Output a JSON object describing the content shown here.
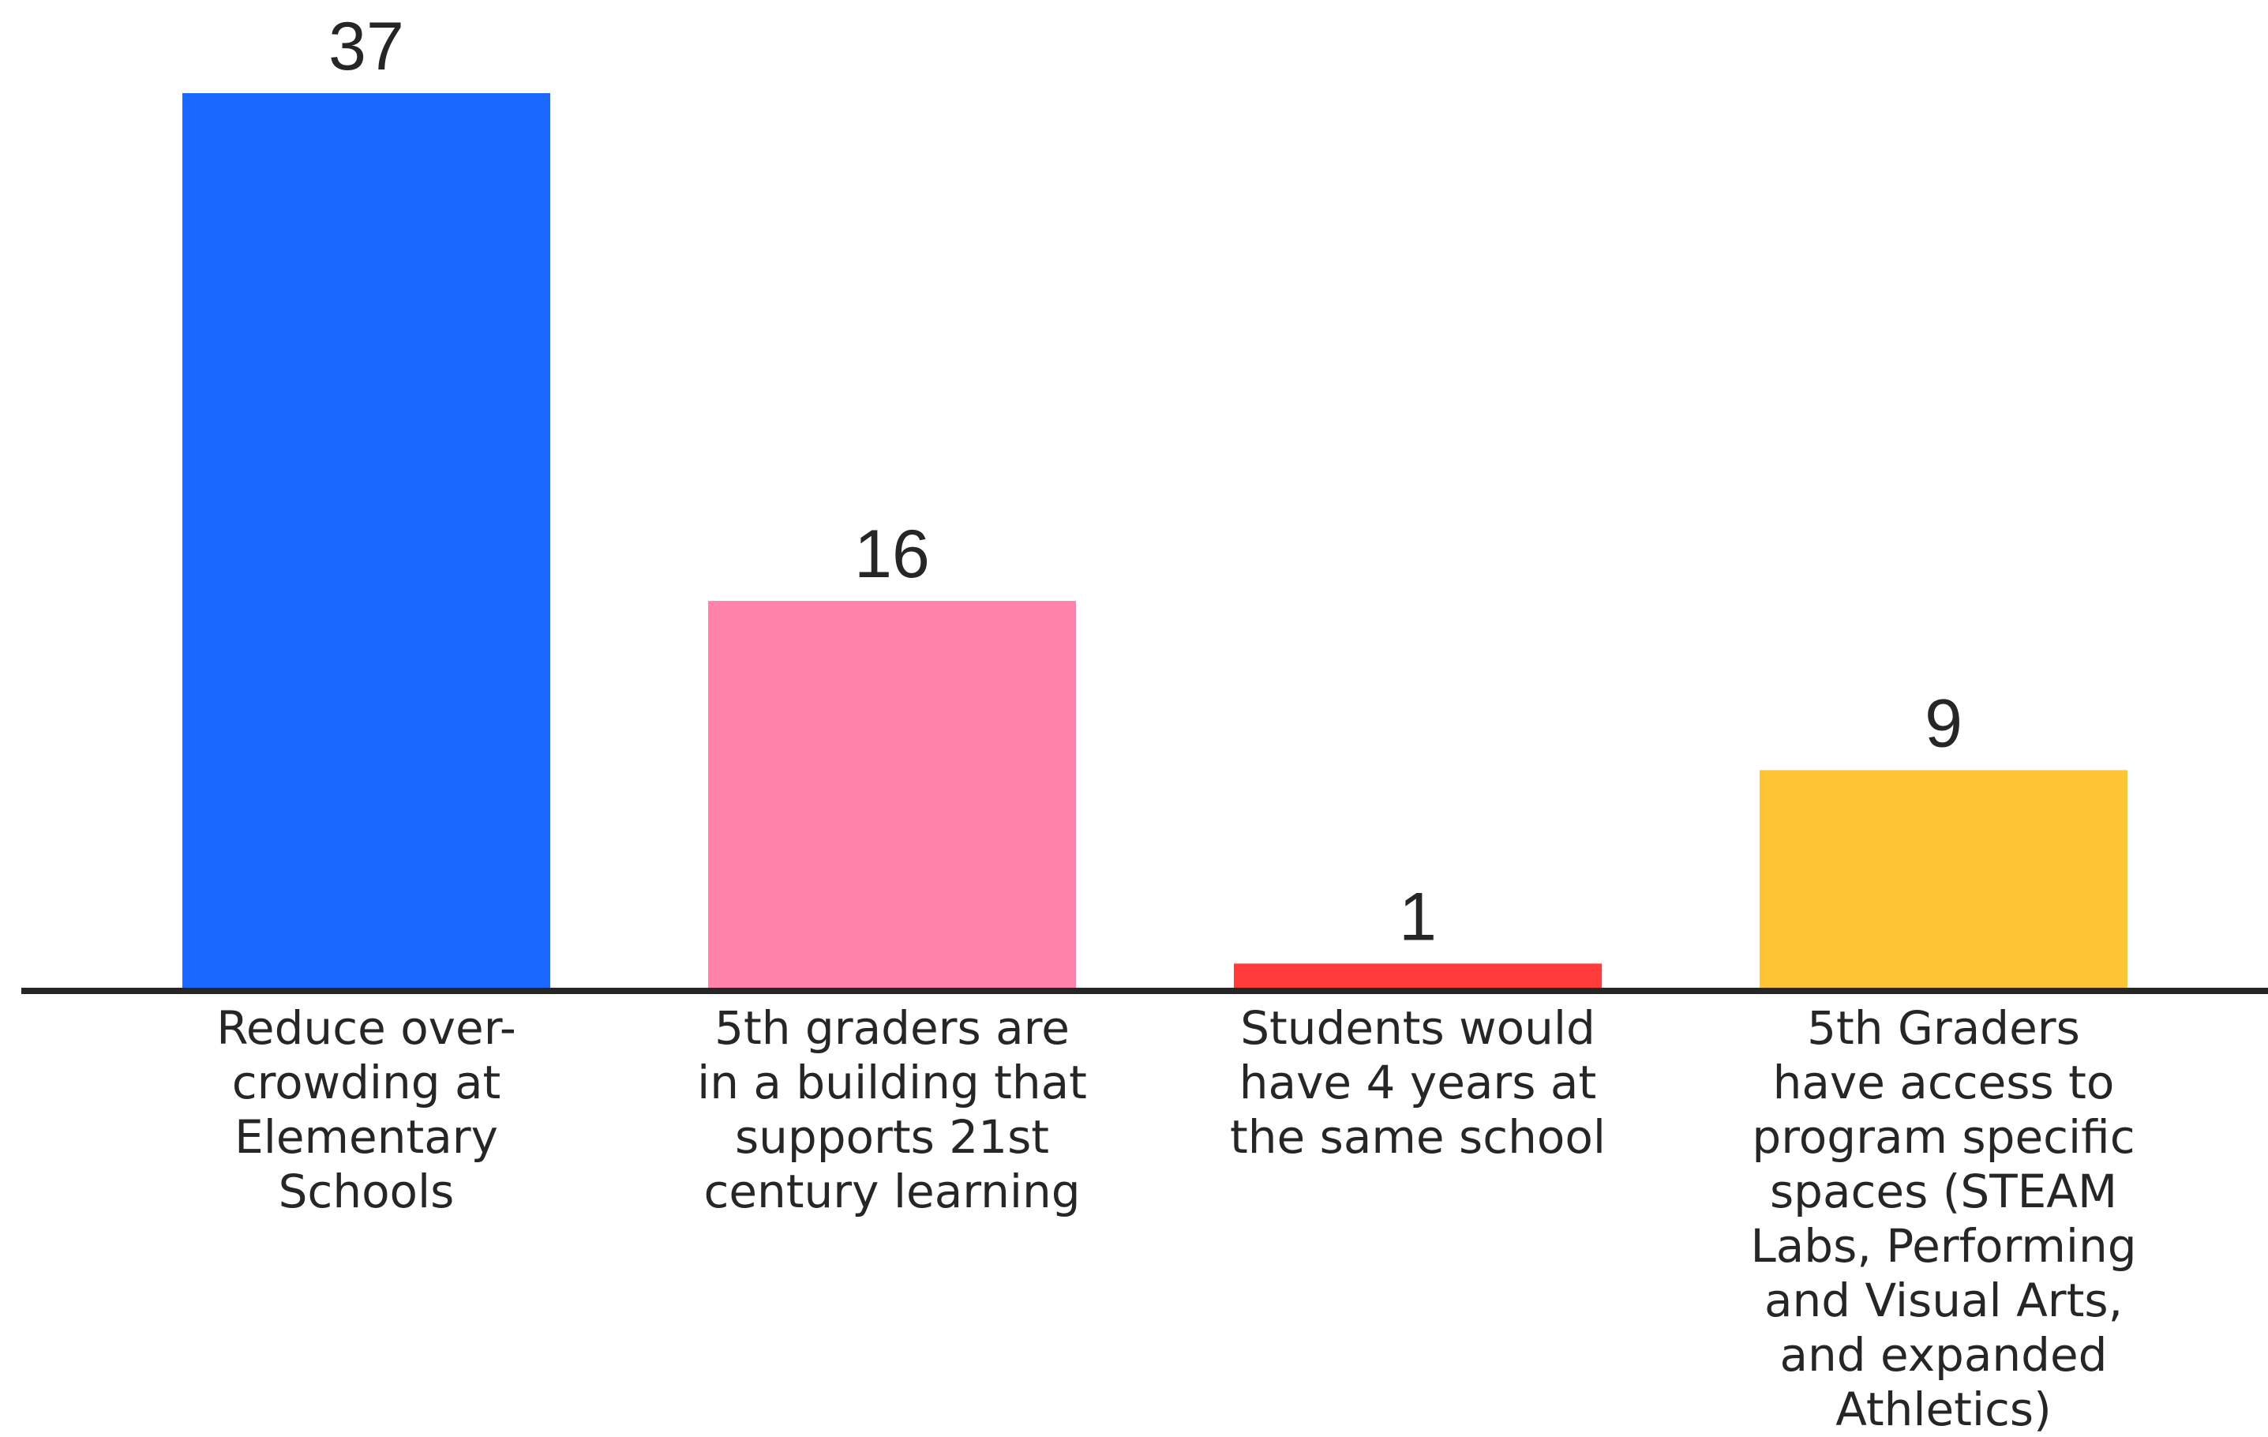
{
  "chart_data": {
    "type": "bar",
    "title": "",
    "xlabel": "",
    "ylabel": "",
    "categories": [
      "Reduce over-\ncrowding at\nElementary\nSchools",
      "5th graders are\nin a building that\nsupports 21st\ncentury learning",
      "Students would\nhave 4 years at\nthe same school",
      "5th Graders\nhave access to\nprogram specific\nspaces (STEAM\nLabs, Performing\nand Visual Arts,\nand expanded\nAthletics)"
    ],
    "values": [
      37,
      16,
      1,
      9
    ],
    "colors": [
      "#1a68ff",
      "#ff82ab",
      "#ff3b3b",
      "#fdc436"
    ],
    "ylim": [
      0,
      37
    ],
    "grid": false,
    "legend": "none"
  }
}
